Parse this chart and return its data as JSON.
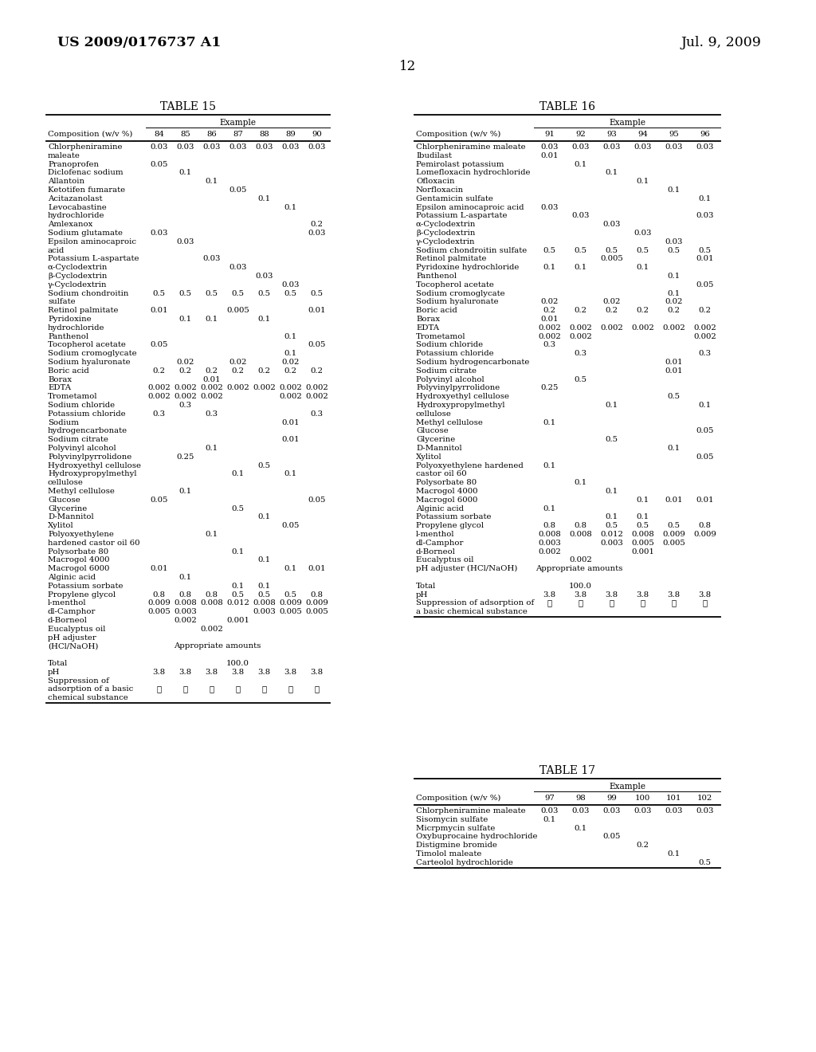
{
  "header_left": "US 2009/0176737 A1",
  "header_right": "Jul. 9, 2009",
  "page_num": "12",
  "table15": {
    "title": "TABLE 15",
    "example_cols": [
      "84",
      "85",
      "86",
      "87",
      "88",
      "89",
      "90"
    ],
    "rows": [
      [
        "Chlorpheniramine",
        "0.03",
        "0.03",
        "0.03",
        "0.03",
        "0.03",
        "0.03",
        "0.03"
      ],
      [
        "maleate",
        "",
        "",
        "",
        "",
        "",
        "",
        ""
      ],
      [
        "Pranoprofen",
        "0.05",
        "",
        "",
        "",
        "",
        "",
        ""
      ],
      [
        "Diclofenac sodium",
        "",
        "0.1",
        "",
        "",
        "",
        "",
        ""
      ],
      [
        "Allantoin",
        "",
        "",
        "0.1",
        "",
        "",
        "",
        ""
      ],
      [
        "Ketotifen fumarate",
        "",
        "",
        "",
        "0.05",
        "",
        "",
        ""
      ],
      [
        "Acitazanolast",
        "",
        "",
        "",
        "",
        "0.1",
        "",
        ""
      ],
      [
        "Levocabastine",
        "",
        "",
        "",
        "",
        "",
        "0.1",
        ""
      ],
      [
        "hydrochloride",
        "",
        "",
        "",
        "",
        "",
        "",
        ""
      ],
      [
        "Amlexanox",
        "",
        "",
        "",
        "",
        "",
        "",
        "0.2"
      ],
      [
        "Sodium glutamate",
        "0.03",
        "",
        "",
        "",
        "",
        "",
        "0.03"
      ],
      [
        "Epsilon aminocaproic",
        "",
        "0.03",
        "",
        "",
        "",
        "",
        ""
      ],
      [
        "acid",
        "",
        "",
        "",
        "",
        "",
        "",
        ""
      ],
      [
        "Potassium L-aspartate",
        "",
        "",
        "0.03",
        "",
        "",
        "",
        ""
      ],
      [
        "α-Cyclodextrin",
        "",
        "",
        "",
        "0.03",
        "",
        "",
        ""
      ],
      [
        "β-Cyclodextrin",
        "",
        "",
        "",
        "",
        "0.03",
        "",
        ""
      ],
      [
        "γ-Cyclodextrin",
        "",
        "",
        "",
        "",
        "",
        "0.03",
        ""
      ],
      [
        "Sodium chondroitin",
        "0.5",
        "0.5",
        "0.5",
        "0.5",
        "0.5",
        "0.5",
        "0.5"
      ],
      [
        "sulfate",
        "",
        "",
        "",
        "",
        "",
        "",
        ""
      ],
      [
        "Retinol palmitate",
        "0.01",
        "",
        "",
        "0.005",
        "",
        "",
        "0.01"
      ],
      [
        "Pyridoxine",
        "",
        "0.1",
        "0.1",
        "",
        "0.1",
        "",
        ""
      ],
      [
        "hydrochloride",
        "",
        "",
        "",
        "",
        "",
        "",
        ""
      ],
      [
        "Panthenol",
        "",
        "",
        "",
        "",
        "",
        "0.1",
        ""
      ],
      [
        "Tocopherol acetate",
        "0.05",
        "",
        "",
        "",
        "",
        "",
        "0.05"
      ],
      [
        "Sodium cromoglycate",
        "",
        "",
        "",
        "",
        "",
        "0.1",
        ""
      ],
      [
        "Sodium hyaluronate",
        "",
        "0.02",
        "",
        "0.02",
        "",
        "0.02",
        ""
      ],
      [
        "Boric acid",
        "0.2",
        "0.2",
        "0.2",
        "0.2",
        "0.2",
        "0.2",
        "0.2"
      ],
      [
        "Borax",
        "",
        "",
        "0.01",
        "",
        "",
        "",
        ""
      ],
      [
        "EDTA",
        "0.002",
        "0.002",
        "0.002",
        "0.002",
        "0.002",
        "0.002",
        "0.002"
      ],
      [
        "Trometamol",
        "0.002",
        "0.002",
        "0.002",
        "",
        "",
        "0.002",
        "0.002"
      ],
      [
        "Sodium chloride",
        "",
        "0.3",
        "",
        "",
        "",
        "",
        ""
      ],
      [
        "Potassium chloride",
        "0.3",
        "",
        "0.3",
        "",
        "",
        "",
        "0.3"
      ],
      [
        "Sodium",
        "",
        "",
        "",
        "",
        "",
        "0.01",
        ""
      ],
      [
        "hydrogencarbonate",
        "",
        "",
        "",
        "",
        "",
        "",
        ""
      ],
      [
        "Sodium citrate",
        "",
        "",
        "",
        "",
        "",
        "0.01",
        ""
      ],
      [
        "Polyvinyl alcohol",
        "",
        "",
        "0.1",
        "",
        "",
        "",
        ""
      ],
      [
        "Polyvinylpyrrolidone",
        "",
        "0.25",
        "",
        "",
        "",
        "",
        ""
      ],
      [
        "Hydroxyethyl cellulose",
        "",
        "",
        "",
        "",
        "0.5",
        "",
        ""
      ],
      [
        "Hydroxypropylmethyl",
        "",
        "",
        "",
        "0.1",
        "",
        "0.1",
        ""
      ],
      [
        "cellulose",
        "",
        "",
        "",
        "",
        "",
        "",
        ""
      ],
      [
        "Methyl cellulose",
        "",
        "0.1",
        "",
        "",
        "",
        "",
        ""
      ],
      [
        "Glucose",
        "0.05",
        "",
        "",
        "",
        "",
        "",
        "0.05"
      ],
      [
        "Glycerine",
        "",
        "",
        "",
        "0.5",
        "",
        "",
        ""
      ],
      [
        "D-Mannitol",
        "",
        "",
        "",
        "",
        "0.1",
        "",
        ""
      ],
      [
        "Xylitol",
        "",
        "",
        "",
        "",
        "",
        "0.05",
        ""
      ],
      [
        "Polyoxyethylene",
        "",
        "",
        "0.1",
        "",
        "",
        "",
        ""
      ],
      [
        "hardened castor oil 60",
        "",
        "",
        "",
        "",
        "",
        "",
        ""
      ],
      [
        "Polysorbate 80",
        "",
        "",
        "",
        "0.1",
        "",
        "",
        ""
      ],
      [
        "Macrogol 4000",
        "",
        "",
        "",
        "",
        "0.1",
        "",
        ""
      ],
      [
        "Macrogol 6000",
        "0.01",
        "",
        "",
        "",
        "",
        "0.1",
        "0.01"
      ],
      [
        "Alginic acid",
        "",
        "0.1",
        "",
        "",
        "",
        "",
        ""
      ],
      [
        "Potassium sorbate",
        "",
        "",
        "",
        "0.1",
        "0.1",
        "",
        ""
      ],
      [
        "Propylene glycol",
        "0.8",
        "0.8",
        "0.8",
        "0.5",
        "0.5",
        "0.5",
        "0.8"
      ],
      [
        "l-menthol",
        "0.009",
        "0.008",
        "0.008",
        "0.012",
        "0.008",
        "0.009",
        "0.009"
      ],
      [
        "dl-Camphor",
        "0.005",
        "0.003",
        "",
        "",
        "0.003",
        "0.005",
        "0.005"
      ],
      [
        "d-Borneol",
        "",
        "0.002",
        "",
        "0.001",
        "",
        "",
        ""
      ],
      [
        "Eucalyptus oil",
        "",
        "",
        "0.002",
        "",
        "",
        "",
        ""
      ],
      [
        "pH adjuster",
        "",
        "",
        "",
        "",
        "",
        "",
        ""
      ],
      [
        "(HCl/NaOH)",
        "",
        "SPAN:Appropriate amounts",
        "",
        "",
        "",
        "",
        ""
      ],
      [
        "",
        "",
        "",
        "",
        "",
        "",
        "",
        ""
      ],
      [
        "Total",
        "",
        "",
        "",
        "100.0",
        "",
        "",
        ""
      ],
      [
        "pH",
        "3.8",
        "3.8",
        "3.8",
        "3.8",
        "3.8",
        "3.8",
        "3.8"
      ],
      [
        "Suppression of",
        "",
        "",
        "",
        "",
        "",
        "",
        ""
      ],
      [
        "adsorption of a basic",
        "☉",
        "☉",
        "☉",
        "☉",
        "☉",
        "☉",
        "☉"
      ],
      [
        "chemical substance",
        "",
        "",
        "",
        "",
        "",
        "",
        ""
      ]
    ]
  },
  "table16": {
    "title": "TABLE 16",
    "example_cols": [
      "91",
      "92",
      "93",
      "94",
      "95",
      "96"
    ],
    "rows": [
      [
        "Chlorpheniramine maleate",
        "0.03",
        "0.03",
        "0.03",
        "0.03",
        "0.03",
        "0.03"
      ],
      [
        "Ibudilast",
        "0.01",
        "",
        "",
        "",
        "",
        ""
      ],
      [
        "Pemirolast potassium",
        "",
        "0.1",
        "",
        "",
        "",
        ""
      ],
      [
        "Lomefloxacin hydrochloride",
        "",
        "",
        "0.1",
        "",
        "",
        ""
      ],
      [
        "Ofloxacin",
        "",
        "",
        "",
        "0.1",
        "",
        ""
      ],
      [
        "Norfloxacin",
        "",
        "",
        "",
        "",
        "0.1",
        ""
      ],
      [
        "Gentamicin sulfate",
        "",
        "",
        "",
        "",
        "",
        "0.1"
      ],
      [
        "Epsilon aminocaproic acid",
        "0.03",
        "",
        "",
        "",
        "",
        ""
      ],
      [
        "Potassium L-aspartate",
        "",
        "0.03",
        "",
        "",
        "",
        "0.03"
      ],
      [
        "α-Cyclodextrin",
        "",
        "",
        "0.03",
        "",
        "",
        ""
      ],
      [
        "β-Cyclodextrin",
        "",
        "",
        "",
        "0.03",
        "",
        ""
      ],
      [
        "γ-Cyclodextrin",
        "",
        "",
        "",
        "",
        "0.03",
        ""
      ],
      [
        "Sodium chondroitin sulfate",
        "0.5",
        "0.5",
        "0.5",
        "0.5",
        "0.5",
        "0.5"
      ],
      [
        "Retinol palmitate",
        "",
        "",
        "0.005",
        "",
        "",
        "0.01"
      ],
      [
        "Pyridoxine hydrochloride",
        "0.1",
        "0.1",
        "",
        "0.1",
        "",
        ""
      ],
      [
        "Panthenol",
        "",
        "",
        "",
        "",
        "0.1",
        ""
      ],
      [
        "Tocopherol acetate",
        "",
        "",
        "",
        "",
        "",
        "0.05"
      ],
      [
        "Sodium cromoglycate",
        "",
        "",
        "",
        "",
        "0.1",
        ""
      ],
      [
        "Sodium hyaluronate",
        "0.02",
        "",
        "0.02",
        "",
        "0.02",
        ""
      ],
      [
        "Boric acid",
        "0.2",
        "0.2",
        "0.2",
        "0.2",
        "0.2",
        "0.2"
      ],
      [
        "Borax",
        "0.01",
        "",
        "",
        "",
        "",
        ""
      ],
      [
        "EDTA",
        "0.002",
        "0.002",
        "0.002",
        "0.002",
        "0.002",
        "0.002"
      ],
      [
        "Trometamol",
        "0.002",
        "0.002",
        "",
        "",
        "",
        "0.002"
      ],
      [
        "Sodium chloride",
        "0.3",
        "",
        "",
        "",
        "",
        ""
      ],
      [
        "Potassium chloride",
        "",
        "0.3",
        "",
        "",
        "",
        "0.3"
      ],
      [
        "Sodium hydrogencarbonate",
        "",
        "",
        "",
        "",
        "0.01",
        ""
      ],
      [
        "Sodium citrate",
        "",
        "",
        "",
        "",
        "0.01",
        ""
      ],
      [
        "Polyvinyl alcohol",
        "",
        "0.5",
        "",
        "",
        "",
        ""
      ],
      [
        "Polyvinylpyrrolidone",
        "0.25",
        "",
        "",
        "",
        "",
        ""
      ],
      [
        "Hydroxyethyl cellulose",
        "",
        "",
        "",
        "",
        "0.5",
        ""
      ],
      [
        "Hydroxypropylmethyl",
        "",
        "",
        "0.1",
        "",
        "",
        "0.1"
      ],
      [
        "cellulose",
        "",
        "",
        "",
        "",
        "",
        ""
      ],
      [
        "Methyl cellulose",
        "0.1",
        "",
        "",
        "",
        "",
        ""
      ],
      [
        "Glucose",
        "",
        "",
        "",
        "",
        "",
        "0.05"
      ],
      [
        "Glycerine",
        "",
        "",
        "0.5",
        "",
        "",
        ""
      ],
      [
        "D-Mannitol",
        "",
        "",
        "",
        "",
        "0.1",
        ""
      ],
      [
        "Xylitol",
        "",
        "",
        "",
        "",
        "",
        "0.05"
      ],
      [
        "Polyoxyethylene hardened",
        "0.1",
        "",
        "",
        "",
        "",
        ""
      ],
      [
        "castor oil 60",
        "",
        "",
        "",
        "",
        "",
        ""
      ],
      [
        "Polysorbate 80",
        "",
        "0.1",
        "",
        "",
        "",
        ""
      ],
      [
        "Macrogol 4000",
        "",
        "",
        "0.1",
        "",
        "",
        ""
      ],
      [
        "Macrogol 6000",
        "",
        "",
        "",
        "0.1",
        "0.01",
        "0.01"
      ],
      [
        "Alginic acid",
        "0.1",
        "",
        "",
        "",
        "",
        ""
      ],
      [
        "Potassium sorbate",
        "",
        "",
        "0.1",
        "0.1",
        "",
        ""
      ],
      [
        "Propylene glycol",
        "0.8",
        "0.8",
        "0.5",
        "0.5",
        "0.5",
        "0.8"
      ],
      [
        "l-menthol",
        "0.008",
        "0.008",
        "0.012",
        "0.008",
        "0.009",
        "0.009"
      ],
      [
        "dl-Camphor",
        "0.003",
        "",
        "0.003",
        "0.005",
        "0.005",
        ""
      ],
      [
        "d-Borneol",
        "0.002",
        "",
        "",
        "0.001",
        "",
        ""
      ],
      [
        "Eucalyptus oil",
        "",
        "0.002",
        "",
        "",
        "",
        ""
      ],
      [
        "pH adjuster (HCl/NaOH)",
        "SPAN:Appropriate amounts",
        "",
        "",
        "",
        "",
        ""
      ],
      [
        "",
        "",
        "",
        "",
        "",
        "",
        ""
      ],
      [
        "Total",
        "",
        "100.0",
        "",
        "",
        "",
        ""
      ],
      [
        "pH",
        "3.8",
        "3.8",
        "3.8",
        "3.8",
        "3.8",
        "3.8"
      ],
      [
        "Suppression of adsorption of",
        "☉",
        "☉",
        "☉",
        "☉",
        "☉",
        "☉"
      ],
      [
        "a basic chemical substance",
        "",
        "",
        "",
        "",
        "",
        ""
      ]
    ]
  },
  "table17": {
    "title": "TABLE 17",
    "example_cols": [
      "97",
      "98",
      "99",
      "100",
      "101",
      "102"
    ],
    "rows": [
      [
        "Chlorpheniramine maleate",
        "0.03",
        "0.03",
        "0.03",
        "0.03",
        "0.03",
        "0.03"
      ],
      [
        "Sisomycin sulfate",
        "0.1",
        "",
        "",
        "",
        "",
        ""
      ],
      [
        "Micrpmycin sulfate",
        "",
        "0.1",
        "",
        "",
        "",
        ""
      ],
      [
        "Oxybuprocaine hydrochloride",
        "",
        "",
        "0.05",
        "",
        "",
        ""
      ],
      [
        "Distigmine bromide",
        "",
        "",
        "",
        "0.2",
        "",
        ""
      ],
      [
        "Timolol maleate",
        "",
        "",
        "",
        "",
        "0.1",
        ""
      ],
      [
        "Carteolol hydrochloride",
        "",
        "",
        "",
        "",
        "",
        "0.5"
      ]
    ]
  }
}
